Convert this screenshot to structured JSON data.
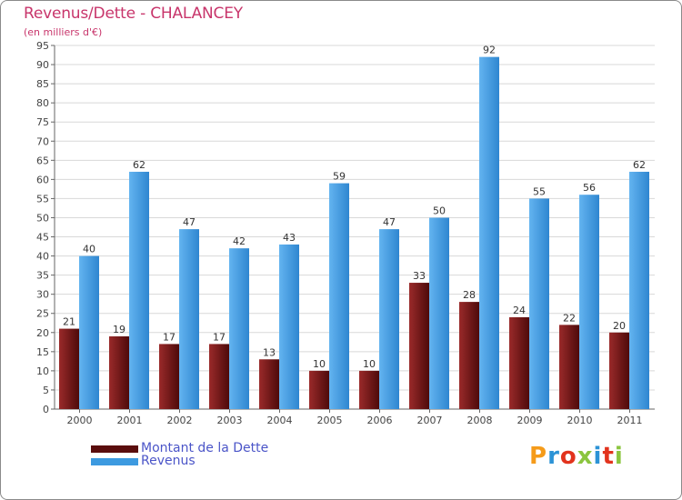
{
  "title": "Revenus/Dette - CHALANCEY",
  "subtitle": "(en milliers d'€)",
  "logo": {
    "text": "Proxiti",
    "colors": [
      "#f59b1a",
      "#2c93d6",
      "#e2331d",
      "#8bc53f",
      "#2c93d6",
      "#e2331d",
      "#8bc53f"
    ]
  },
  "chart_data": {
    "type": "bar",
    "title": "Revenus/Dette - CHALANCEY",
    "ylabel": "(en milliers d'€)",
    "xlabel": "",
    "ylim": [
      0,
      95
    ],
    "ytick_step": 5,
    "grid": true,
    "categories": [
      "2000",
      "2001",
      "2002",
      "2003",
      "2004",
      "2005",
      "2006",
      "2007",
      "2008",
      "2009",
      "2010",
      "2011"
    ],
    "series": [
      {
        "name": "Montant de la Dette",
        "color": "#7a1515",
        "values": [
          21,
          19,
          17,
          17,
          13,
          10,
          10,
          33,
          28,
          24,
          22,
          20
        ]
      },
      {
        "name": "Revenus",
        "color": "#4aa3e8",
        "values": [
          40,
          62,
          47,
          42,
          43,
          59,
          47,
          50,
          92,
          55,
          56,
          62
        ]
      }
    ],
    "legend_position": "bottom-left"
  }
}
